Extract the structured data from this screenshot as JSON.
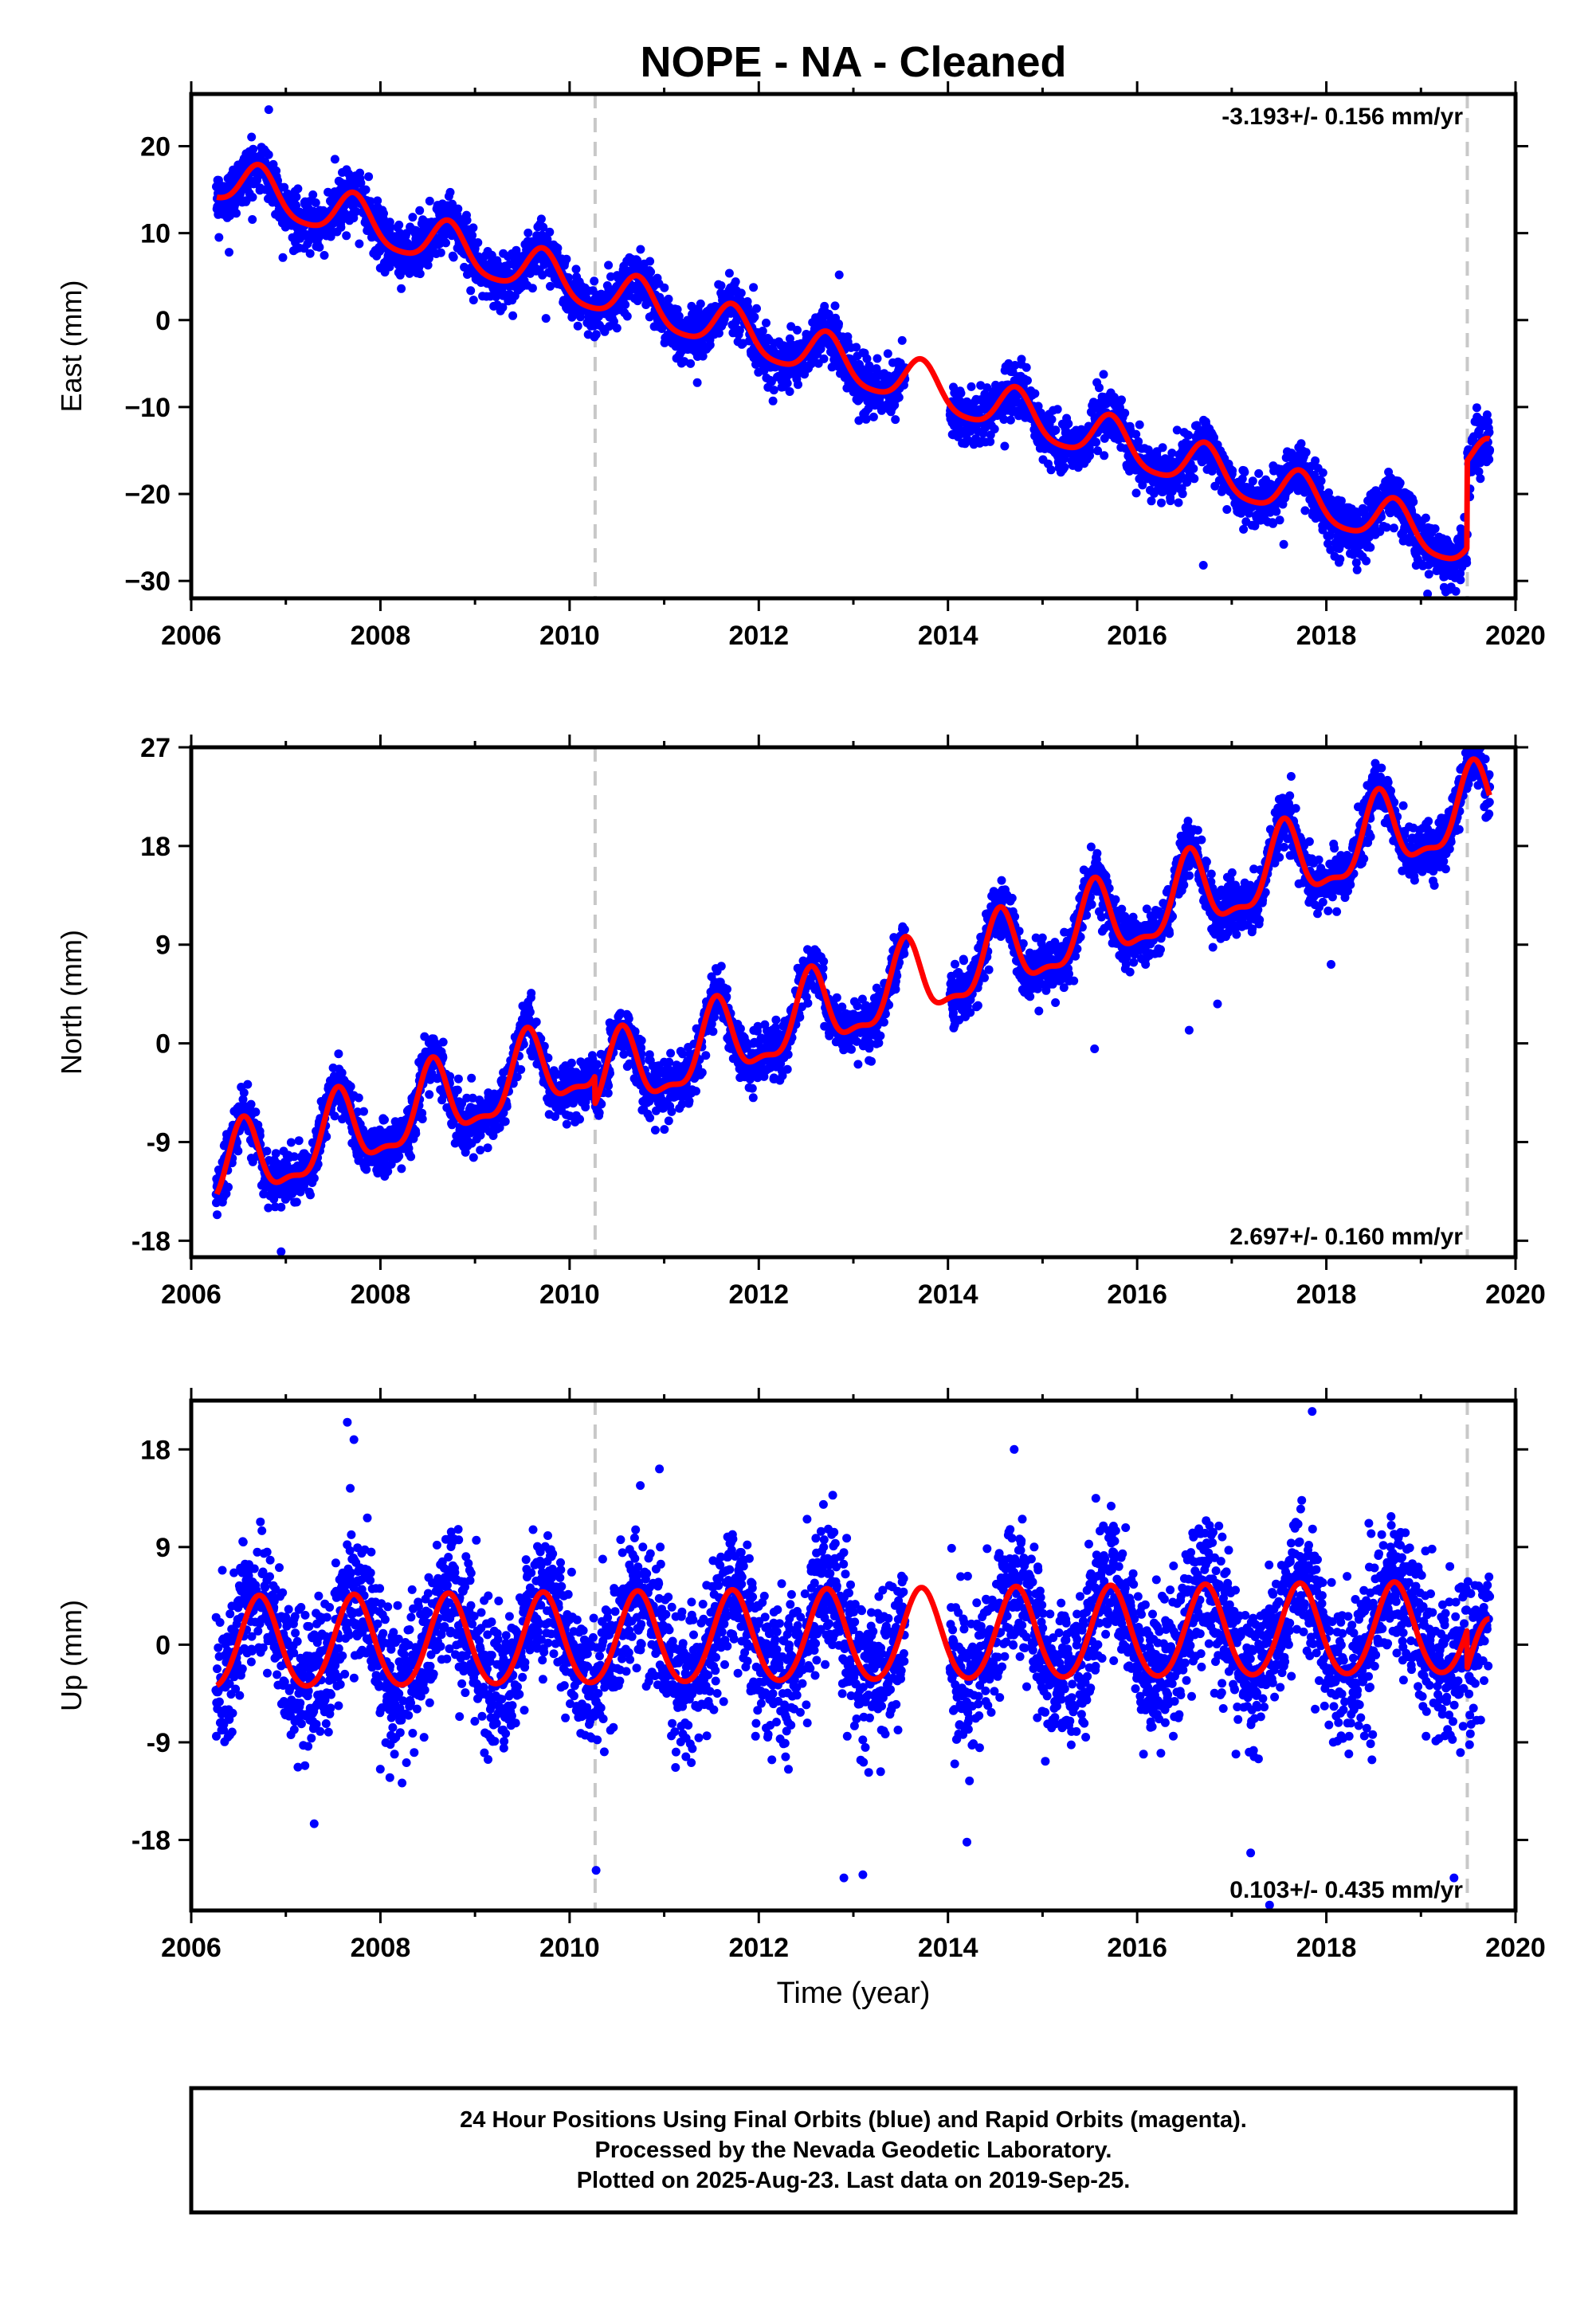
{
  "title": "NOPE  - NA - Cleaned",
  "xlabel": "Time (year)",
  "colors": {
    "points": "#0000ff",
    "model": "#ff0000",
    "break_line": "#c8c8c8",
    "frame": "#000000"
  },
  "break_epochs": [
    2010.27,
    2019.49
  ],
  "footer": {
    "line1": "24 Hour Positions Using Final Orbits (blue) and Rapid Orbits (magenta).",
    "line2": "Processed by the Nevada Geodetic Laboratory.",
    "line3": "Plotted on 2025-Aug-23. Last data on 2019-Sep-25."
  },
  "chart_data": [
    {
      "type": "scatter",
      "component": "east",
      "ylabel": "East (mm)",
      "xlim": [
        2006,
        2020
      ],
      "ylim": [
        -32,
        26
      ],
      "xticks": [
        2006,
        2008,
        2010,
        2012,
        2014,
        2016,
        2018,
        2020
      ],
      "yticks": [
        20,
        10,
        0,
        -10,
        -20,
        -30
      ],
      "ytick_labels": [
        "20",
        "10",
        "0",
        "−10",
        "−20",
        "−30"
      ],
      "rate_label": "-3.193+/- 0.156 mm/yr",
      "rate_position": "top-right",
      "model": {
        "t0": 2006.27,
        "offset": 16.2,
        "rate": -3.193,
        "annual_amplitude": 2.6,
        "annual_peak": 2006.72,
        "semiannual_amplitude": 0.5,
        "step": {
          "epoch": 2019.49,
          "size": 10.0
        }
      },
      "observations": {
        "start": 2006.26,
        "end": 2019.73,
        "spacing_days": 1,
        "gaps": [
          [
            2013.55,
            2014.02
          ]
        ],
        "scatter_sd": 1.5,
        "outliers": [
          [
            2006.82,
            24.2
          ],
          [
            2006.4,
            7.8
          ],
          [
            2007.52,
            18.5
          ],
          [
            2009.4,
            0.5
          ],
          [
            2009.75,
            0.2
          ],
          [
            2011.35,
            -7.2
          ],
          [
            2012.15,
            -9.3
          ],
          [
            2012.85,
            5.2
          ],
          [
            2014.6,
            -14.5
          ],
          [
            2016.15,
            -20.8
          ],
          [
            2016.7,
            -28.2
          ],
          [
            2017.55,
            -25.8
          ],
          [
            2018.1,
            -24.0
          ],
          [
            2019.3,
            -31.0
          ],
          [
            2019.25,
            -29.5
          ]
        ]
      }
    },
    {
      "type": "scatter",
      "component": "north",
      "ylabel": "North (mm)",
      "xlim": [
        2006,
        2020
      ],
      "ylim": [
        -19.5,
        27
      ],
      "xticks": [
        2006,
        2008,
        2010,
        2012,
        2014,
        2016,
        2018,
        2020
      ],
      "yticks": [
        27,
        18,
        9,
        0,
        -9,
        -18
      ],
      "ytick_labels": [
        "27",
        "18",
        "9",
        "0",
        "-9",
        "-18"
      ],
      "rate_label": "2.697+/- 0.160 mm/yr",
      "rate_position": "bottom-right",
      "model": {
        "t0": 2006.27,
        "offset": -12.0,
        "rate": 2.697,
        "annual_amplitude": 3.4,
        "annual_peak": 2006.55,
        "semiannual_amplitude": 1.2,
        "step": {
          "epoch": 2010.27,
          "size": -2.5
        }
      },
      "observations": {
        "start": 2006.26,
        "end": 2019.73,
        "spacing_days": 1,
        "gaps": [
          [
            2013.55,
            2014.02
          ]
        ],
        "scatter_sd": 1.2,
        "outliers": [
          [
            2006.95,
            -19.0
          ],
          [
            2015.55,
            -0.5
          ],
          [
            2016.55,
            1.2
          ],
          [
            2016.85,
            3.6
          ],
          [
            2018.05,
            7.2
          ],
          [
            2019.52,
            25.8
          ]
        ]
      }
    },
    {
      "type": "scatter",
      "component": "up",
      "ylabel": "Up (mm)",
      "xlim": [
        2006,
        2020
      ],
      "ylim": [
        -24.5,
        22.5
      ],
      "xticks": [
        2006,
        2008,
        2010,
        2012,
        2014,
        2016,
        2018,
        2020
      ],
      "yticks": [
        18,
        9,
        0,
        -9,
        -18
      ],
      "ytick_labels": [
        "18",
        "9",
        "0",
        "-9",
        "-18"
      ],
      "rate_label": "0.103+/- 0.435 mm/yr",
      "rate_position": "bottom-right",
      "model": {
        "t0": 2006.27,
        "offset": -0.1,
        "rate": 0.103,
        "annual_amplitude": 4.2,
        "annual_peak": 2006.72,
        "semiannual_amplitude": 0.4,
        "step": {
          "epoch": 2019.49,
          "size": -3.5
        }
      },
      "observations": {
        "start": 2006.26,
        "end": 2019.73,
        "spacing_days": 1,
        "gaps": [
          [
            2013.55,
            2014.02
          ]
        ],
        "scatter_sd": 3.2,
        "outliers": [
          [
            2007.65,
            20.5
          ],
          [
            2007.72,
            18.9
          ],
          [
            2007.3,
            -16.5
          ],
          [
            2010.28,
            -20.8
          ],
          [
            2010.95,
            16.2
          ],
          [
            2012.9,
            -21.5
          ],
          [
            2013.1,
            -21.2
          ],
          [
            2014.2,
            -18.2
          ],
          [
            2014.7,
            18.0
          ],
          [
            2017.2,
            -19.2
          ],
          [
            2017.85,
            21.5
          ],
          [
            2019.35,
            -21.5
          ],
          [
            2017.4,
            -24.0
          ]
        ]
      }
    }
  ]
}
